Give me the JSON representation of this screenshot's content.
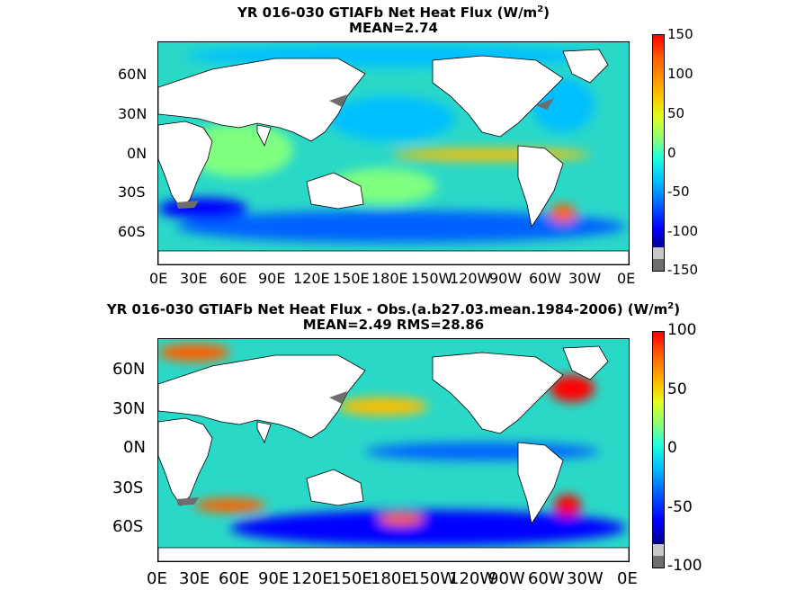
{
  "panel1": {
    "title_main": "YR 016-030 GTIAFb  Net Heat Flux (W/m",
    "title_sup": "2",
    "title_close": ")",
    "subtitle": "MEAN=2.74",
    "lat_labels": [
      "60N",
      "30N",
      "0N",
      "30S",
      "60S"
    ],
    "lon_labels": [
      "0E",
      "30E",
      "60E",
      "90E",
      "120E",
      "150E",
      "180E",
      "150W",
      "120W",
      "90W",
      "60W",
      "30W",
      "0E"
    ],
    "colorbar_labels": [
      "150",
      "100",
      "50",
      "0",
      "-50",
      "-100",
      "-150"
    ]
  },
  "panel2": {
    "title_main": "YR 016-030 GTIAFb  Net Heat Flux - Obs.(a.b27.03.mean.1984-2006) (W/m",
    "title_sup": "2",
    "title_close": ")",
    "subtitle": "MEAN=2.49 RMS=28.86",
    "lat_labels": [
      "60N",
      "30N",
      "0N",
      "30S",
      "60S"
    ],
    "lon_labels": [
      "0E",
      "30E",
      "60E",
      "90E",
      "120E",
      "150E",
      "180E",
      "150W",
      "120W",
      "90W",
      "60W",
      "30W",
      "0E"
    ],
    "colorbar_labels": [
      "100",
      "50",
      "0",
      "-50",
      "-100"
    ]
  },
  "colors": {
    "ocean_base": "#2ad8c8",
    "land": "#ffffff",
    "ice_gray": "#6e6e6e",
    "colormap": [
      "#00008f",
      "#0000ff",
      "#0060ff",
      "#00bfff",
      "#20ffdf",
      "#80ff80",
      "#dfff20",
      "#ffbf00",
      "#ff6000",
      "#ff0000",
      "#8f0000"
    ]
  }
}
